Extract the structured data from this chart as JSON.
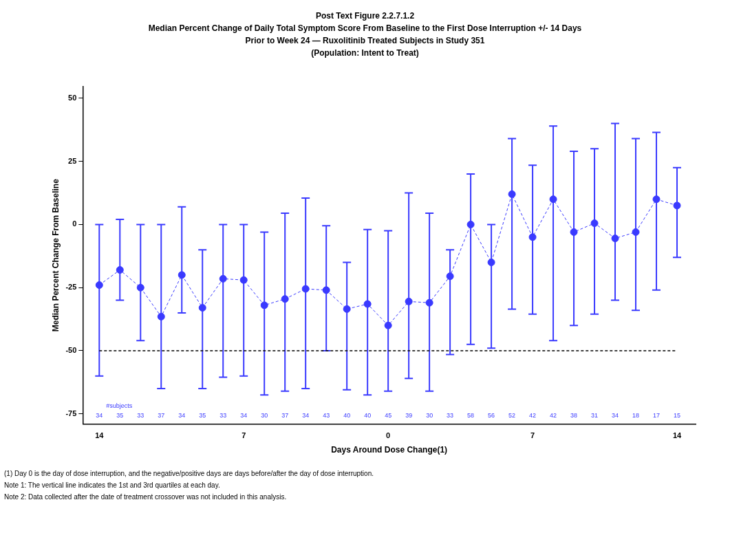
{
  "chart_data": {
    "type": "line",
    "title": "Post Text Figure 2.2.7.1.2",
    "subtitle": "Median Percent Change of Daily Total Symptom Score From Baseline to the First Dose Interruption +/- 14 Days\nPrior to Week 24 — Ruxolitinib Treated Subjects in Study 351\n(Population: Intent to Treat)",
    "xlabel": "Days Around Dose Change(1)",
    "ylabel": "Median Percent Change From Baseline",
    "x": [
      -14,
      -13,
      -12,
      -11,
      -10,
      -9,
      -8,
      -7,
      -6,
      -5,
      -4,
      -3,
      -2,
      -1,
      0,
      1,
      2,
      3,
      4,
      5,
      6,
      7,
      8,
      9,
      10,
      11,
      12,
      13,
      14
    ],
    "series": [
      {
        "color": "#3a3aff",
        "values": [
          -24,
          -18,
          -25,
          -36.5,
          -20,
          -33,
          -21.5,
          -22,
          -32,
          -29.5,
          -25.5,
          -26,
          -33.5,
          -31.5,
          -40,
          -30.5,
          -31,
          -20.5,
          0,
          -15,
          12,
          -5,
          10,
          -3,
          0.5,
          -5.5,
          -3,
          10,
          7.5
        ],
        "errors": [
          [
            -60,
            0
          ],
          [
            -30,
            2
          ],
          [
            -46,
            0
          ],
          [
            -65,
            0
          ],
          [
            -35,
            7
          ],
          [
            -65,
            -10
          ],
          [
            -60.5,
            0
          ],
          [
            -60,
            0
          ],
          [
            -67.5,
            -3
          ],
          [
            -66,
            4.5
          ],
          [
            -65,
            10.5
          ],
          [
            -50,
            -0.5
          ],
          [
            -65.5,
            -15
          ],
          [
            -67.5,
            -2
          ],
          [
            -66,
            -2.5
          ],
          [
            -61,
            12.5
          ],
          [
            -66,
            4.5
          ],
          [
            -51.5,
            -10
          ],
          [
            -47.5,
            20
          ],
          [
            -49,
            0
          ],
          [
            -33.5,
            34
          ],
          [
            -35.5,
            23.5
          ],
          [
            -46,
            39
          ],
          [
            -40,
            29
          ],
          [
            -35.5,
            30
          ],
          [
            -30,
            40
          ],
          [
            -34,
            34
          ],
          [
            -26,
            36.5
          ],
          [
            -13,
            22.5
          ]
        ]
      }
    ],
    "xlim": [
      -14.8,
      14.9
    ],
    "ylim": [
      -79,
      54.6
    ],
    "xticks": [
      {
        "value": -14,
        "label": "14"
      },
      {
        "value": -7,
        "label": "7"
      },
      0,
      7,
      14
    ],
    "yticks": [
      -75,
      -50,
      -25,
      0,
      25,
      50
    ],
    "ref_lines": [
      {
        "axis": "y",
        "value": -50,
        "color": "#000000",
        "line_style": "dashed"
      }
    ],
    "marker": "circle",
    "line_style": "dashed",
    "grid": false,
    "legend": false,
    "annotations": [
      "#subjects",
      "34",
      "35",
      "33",
      "37",
      "34",
      "35",
      "33",
      "34",
      "30",
      "37",
      "34",
      "43",
      "40",
      "40",
      "45",
      "39",
      "30",
      "33",
      "58",
      "56",
      "52",
      "42",
      "42",
      "38",
      "31",
      "34",
      "18",
      "17",
      "15",
      "(1) Day 0 is the day of dose interruption, and the negative/positive days are days before/after the day of dose interruption.",
      "Note 1: The vertical line indicates the 1st and 3rd quartiles at each day.",
      "Note 2: Data collected after the date of treatment crossover was not included in this analysis."
    ]
  }
}
